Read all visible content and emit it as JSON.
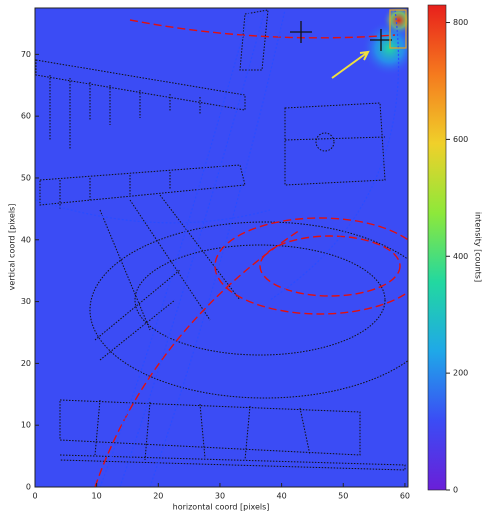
{
  "chart_data": {
    "type": "heatmap",
    "xlabel": "horizontal coord [pixels]",
    "ylabel": "vertical coord [pixels]",
    "colorbar_label": "intensity [counts]",
    "xlim": [
      0,
      60.5
    ],
    "ylim": [
      0,
      77.5
    ],
    "xticks": [
      0,
      10,
      20,
      30,
      40,
      50,
      60
    ],
    "yticks": [
      0,
      10,
      20,
      30,
      40,
      50,
      60,
      70
    ],
    "zlim": [
      0,
      830
    ],
    "zticks": [
      0,
      200,
      400,
      600,
      800
    ],
    "background": 60,
    "colormap": [
      "#6a1fd8",
      "#3b4cf5",
      "#1fa8e8",
      "#22d8a0",
      "#8ee83a",
      "#f0d02a",
      "#f57a1e",
      "#e8201c"
    ],
    "hotspots": {
      "x": [
        59,
        57.5,
        16,
        6
      ],
      "y": [
        75.5,
        71,
        19,
        62
      ],
      "values": [
        800,
        350,
        160,
        90
      ]
    }
  }
}
